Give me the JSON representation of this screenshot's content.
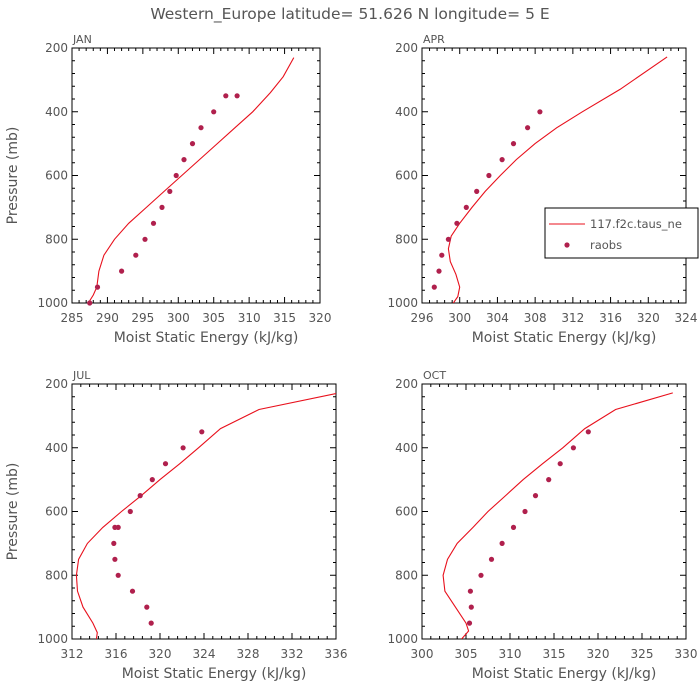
{
  "figure": {
    "title": "Western_Europe  latitude= 51.626 N longitude= 5 E",
    "legend": {
      "model_label": "117.f2c.taus_ne",
      "obs_label": "raobs"
    },
    "colors": {
      "model": "#e8101c",
      "obs": "#b0204d"
    }
  },
  "chart_data": [
    {
      "type": "line",
      "panel": "JAN",
      "xlabel": "Moist Static Energy (kJ/kg)",
      "ylabel": "Pressure (mb)",
      "xlim": [
        285,
        320
      ],
      "ylim": [
        1000,
        200
      ],
      "xticks": [
        285,
        290,
        295,
        300,
        305,
        310,
        315,
        320
      ],
      "yticks": [
        200,
        400,
        600,
        800,
        1000
      ],
      "model": {
        "name": "117.f2c.taus_ne",
        "x": [
          287.3,
          288.0,
          288.5,
          288.8,
          289.5,
          291.0,
          293.0,
          295.5,
          298.0,
          300.5,
          303.0,
          305.5,
          308.0,
          310.5,
          313.0,
          314.8,
          316.3
        ],
        "y": [
          1000,
          975,
          950,
          900,
          850,
          800,
          750,
          700,
          650,
          600,
          550,
          500,
          450,
          400,
          340,
          290,
          230
        ]
      },
      "raobs": {
        "name": "raobs",
        "x": [
          287.5,
          288.6,
          292.0,
          294.0,
          295.3,
          296.5,
          297.7,
          298.8,
          299.7,
          300.8,
          302.0,
          303.2,
          305.0,
          306.7,
          308.3
        ],
        "y": [
          1000,
          950,
          900,
          850,
          800,
          750,
          700,
          650,
          600,
          550,
          500,
          450,
          400,
          350,
          350
        ]
      }
    },
    {
      "type": "line",
      "panel": "APR",
      "xlabel": "Moist Static Energy (kJ/kg)",
      "ylabel": "",
      "xlim": [
        296,
        324
      ],
      "ylim": [
        1000,
        200
      ],
      "xticks": [
        296,
        300,
        304,
        308,
        312,
        316,
        320,
        324
      ],
      "yticks": [
        200,
        400,
        600,
        800,
        1000
      ],
      "model": {
        "name": "117.f2c.taus_ne",
        "x": [
          299.2,
          299.8,
          300.0,
          299.6,
          299.0,
          298.8,
          299.1,
          300.0,
          301.3,
          302.7,
          304.3,
          306.0,
          308.0,
          310.3,
          313.0,
          317.0,
          322.0
        ],
        "y": [
          1005,
          980,
          950,
          910,
          870,
          830,
          790,
          750,
          700,
          650,
          600,
          550,
          500,
          450,
          400,
          330,
          228
        ]
      },
      "raobs": {
        "name": "raobs",
        "x": [
          297.3,
          297.8,
          298.1,
          298.8,
          299.7,
          300.7,
          301.8,
          303.1,
          304.5,
          305.7,
          307.2,
          308.5
        ],
        "y": [
          950,
          900,
          850,
          800,
          750,
          700,
          650,
          600,
          550,
          500,
          450,
          400
        ]
      }
    },
    {
      "type": "line",
      "panel": "JUL",
      "xlabel": "Moist Static Energy (kJ/kg)",
      "ylabel": "Pressure (mb)",
      "xlim": [
        312,
        336
      ],
      "ylim": [
        1000,
        200
      ],
      "xticks": [
        312,
        316,
        320,
        324,
        328,
        332,
        336
      ],
      "yticks": [
        200,
        400,
        600,
        800,
        1000
      ],
      "model": {
        "name": "117.f2c.taus_ne",
        "x": [
          314.2,
          314.3,
          313.9,
          313.0,
          312.5,
          312.4,
          312.6,
          313.4,
          314.8,
          316.5,
          318.3,
          320.0,
          321.8,
          323.5,
          325.5,
          329.0,
          336.0
        ],
        "y": [
          1005,
          980,
          950,
          900,
          850,
          800,
          750,
          700,
          650,
          600,
          550,
          500,
          450,
          400,
          340,
          280,
          230
        ]
      },
      "raobs": {
        "name": "raobs",
        "x": [
          319.2,
          318.8,
          317.5,
          316.2,
          315.9,
          315.8,
          315.9,
          316.2,
          317.3,
          318.2,
          319.3,
          320.5,
          322.1,
          323.8
        ],
        "y": [
          950,
          900,
          850,
          800,
          750,
          700,
          650,
          650,
          600,
          550,
          500,
          450,
          400,
          350
        ]
      }
    },
    {
      "type": "line",
      "panel": "OCT",
      "xlabel": "Moist Static Energy (kJ/kg)",
      "ylabel": "",
      "xlim": [
        300,
        330
      ],
      "ylim": [
        1000,
        200
      ],
      "xticks": [
        300,
        305,
        310,
        315,
        320,
        325,
        330
      ],
      "yticks": [
        200,
        400,
        600,
        800,
        1000
      ],
      "model": {
        "name": "117.f2c.taus_ne",
        "x": [
          304.5,
          305.3,
          305.0,
          303.8,
          302.6,
          302.4,
          302.9,
          304.0,
          305.8,
          307.5,
          309.5,
          311.5,
          313.7,
          316.0,
          318.5,
          322.0,
          328.5
        ],
        "y": [
          1000,
          975,
          950,
          900,
          850,
          800,
          750,
          700,
          650,
          600,
          550,
          500,
          450,
          400,
          340,
          280,
          228
        ]
      },
      "raobs": {
        "name": "raobs",
        "x": [
          305.4,
          305.6,
          305.5,
          306.7,
          307.9,
          309.1,
          310.4,
          311.7,
          312.9,
          314.4,
          315.7,
          317.2,
          318.9
        ],
        "y": [
          950,
          900,
          850,
          800,
          750,
          700,
          650,
          600,
          550,
          500,
          450,
          400,
          350
        ]
      }
    }
  ]
}
